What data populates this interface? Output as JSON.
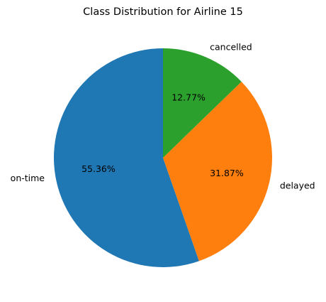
{
  "chart_data": {
    "type": "pie",
    "title": "Class Distribution for Airline 15",
    "labels": [
      "on-time",
      "delayed",
      "cancelled"
    ],
    "values": [
      55.36,
      31.87,
      12.77
    ],
    "percent_labels": [
      "55.36%",
      "31.87%",
      "12.77%"
    ],
    "colors": [
      "#1f77b4",
      "#ff7f0e",
      "#2ca02c"
    ],
    "start_angle_deg": 90,
    "direction": "counterclockwise",
    "legend": "none"
  }
}
